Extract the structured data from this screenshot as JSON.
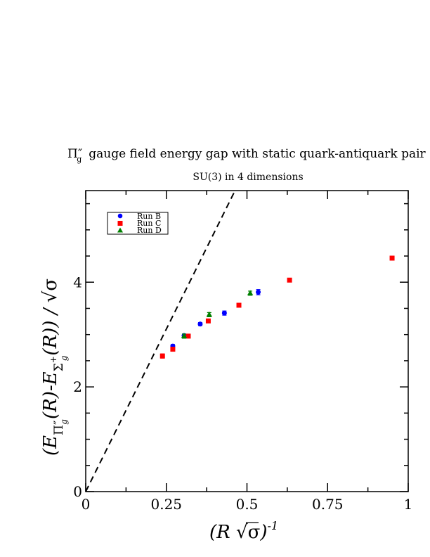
{
  "chart_data": {
    "type": "scatter",
    "title": "Π″g gauge field energy gap with static quark-antiquark pair",
    "title_parts": {
      "symbol": "Π",
      "primes": "″",
      "sub": "g",
      "rest": "gauge field energy gap with static quark-antiquark pair"
    },
    "subtitle": "SU(3) in 4 dimensions",
    "xlabel": "(R √σ)-1",
    "xlabel_parts": {
      "open": "(R ",
      "sqrt": "√",
      "sigma": "σ",
      "close": ")",
      "exp": "-1"
    },
    "ylabel": "(EΠ″g(R)-EΣ+g(R)) / √σ",
    "ylabel_parts": {
      "open": "(E",
      "pi": "Π″",
      "sub_g1": "g",
      "mid": "(R)-E",
      "sigma_plus": "Σ",
      "plus": "+",
      "sub_g2": "g",
      "close": "(R)) / ",
      "sqrt": "√",
      "sigma": "σ"
    },
    "xlim": [
      0,
      1
    ],
    "ylim": [
      0,
      5.75
    ],
    "x_ticks": [
      0,
      0.25,
      0.5,
      0.75,
      1
    ],
    "x_tick_labels": [
      "0",
      "0.25",
      "0.5",
      "0.75",
      "1"
    ],
    "y_ticks": [
      0,
      2,
      4
    ],
    "y_tick_labels": [
      "0",
      "2",
      "4"
    ],
    "legend_position": "top-left",
    "grid": false,
    "series": [
      {
        "name": "Run B",
        "color": "#0000ff",
        "marker": "circle",
        "x": [
          0.27,
          0.305,
          0.355,
          0.43,
          0.535
        ],
        "y": [
          2.78,
          2.98,
          3.2,
          3.41,
          3.81
        ],
        "err": [
          0.03,
          0.03,
          0.03,
          0.04,
          0.05
        ]
      },
      {
        "name": "Run C",
        "color": "#ff0000",
        "marker": "square",
        "x": [
          0.238,
          0.27,
          0.318,
          0.38,
          0.475,
          0.632,
          0.95
        ],
        "y": [
          2.59,
          2.72,
          2.97,
          3.26,
          3.56,
          4.04,
          4.46
        ],
        "err": [
          0.04,
          0.03,
          0.03,
          0.03,
          0.03,
          0.03,
          0.03
        ]
      },
      {
        "name": "Run D",
        "color": "#008000",
        "marker": "triangle",
        "x": [
          0.305,
          0.383,
          0.51
        ],
        "y": [
          2.97,
          3.38,
          3.79
        ],
        "err": [
          0.04,
          0.04,
          0.04
        ]
      }
    ],
    "reference_line": {
      "style": "dashed",
      "color": "#000000",
      "x": [
        0,
        0.463
      ],
      "y": [
        0,
        5.75
      ]
    }
  }
}
